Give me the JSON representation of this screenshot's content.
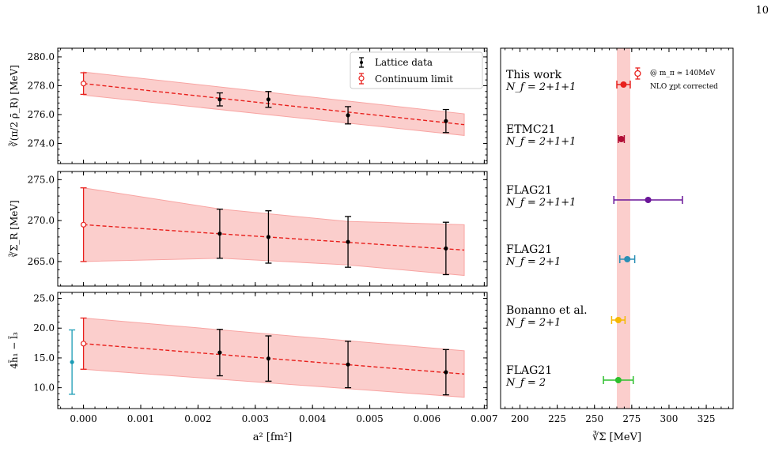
{
  "page_number": "10",
  "chart_data": [
    {
      "type": "scatter",
      "panel": "top",
      "ylabel": "∛(π/2 ρ̄_R)  [MeV]",
      "ylim": [
        272.6,
        280.6
      ],
      "yticks": [
        "280.0",
        "278.0",
        "276.0",
        "274.0"
      ],
      "ytick_values": [
        280.0,
        278.0,
        276.0,
        274.0
      ],
      "xlim": [
        -0.00045,
        0.00705
      ],
      "legend": [
        "Lattice data",
        "Continuum limit"
      ],
      "legend_position": "top-right",
      "lattice_points": [
        {
          "x": 0.00238,
          "y": 277.05,
          "err": 0.45
        },
        {
          "x": 0.00323,
          "y": 277.05,
          "err": 0.55
        },
        {
          "x": 0.00462,
          "y": 275.95,
          "err": 0.6
        },
        {
          "x": 0.00633,
          "y": 275.55,
          "err": 0.8
        }
      ],
      "continuum_point": {
        "x": 0.0,
        "y": 278.15,
        "err": 0.75
      },
      "fit_line": {
        "x": [
          0.0,
          0.00665
        ],
        "y": [
          278.15,
          275.3
        ]
      },
      "band_upper": [
        [
          0.0,
          278.95
        ],
        [
          0.00665,
          276.05
        ]
      ],
      "band_lower": [
        [
          0.0,
          277.35
        ],
        [
          0.00665,
          274.55
        ]
      ]
    },
    {
      "type": "scatter",
      "panel": "middle",
      "ylabel": "∛Σ_R  [MeV]",
      "ylim": [
        262.0,
        276.0
      ],
      "yticks": [
        "275.0",
        "270.0",
        "265.0"
      ],
      "ytick_values": [
        275.0,
        270.0,
        265.0
      ],
      "xlim": [
        -0.00045,
        0.00705
      ],
      "lattice_points": [
        {
          "x": 0.00238,
          "y": 268.4,
          "err": 3.0
        },
        {
          "x": 0.00323,
          "y": 268.0,
          "err": 3.2
        },
        {
          "x": 0.00462,
          "y": 267.4,
          "err": 3.1
        },
        {
          "x": 0.00633,
          "y": 266.6,
          "err": 3.2
        }
      ],
      "continuum_point": {
        "x": 0.0,
        "y": 269.5,
        "err": 4.5
      },
      "fit_line": {
        "x": [
          0.0,
          0.00665
        ],
        "y": [
          269.5,
          266.4
        ]
      },
      "band_upper": [
        [
          0.0,
          274.0
        ],
        [
          0.0024,
          271.4
        ],
        [
          0.0046,
          269.9
        ],
        [
          0.00665,
          269.5
        ]
      ],
      "band_lower": [
        [
          0.0,
          265.0
        ],
        [
          0.0024,
          265.4
        ],
        [
          0.0046,
          264.6
        ],
        [
          0.00665,
          263.3
        ]
      ]
    },
    {
      "type": "scatter",
      "panel": "bottom",
      "ylabel": "4h̄₁ − l̄₃",
      "xlabel": "a² [fm²]",
      "ylim": [
        6.5,
        26.0
      ],
      "yticks": [
        "25.0",
        "20.0",
        "15.0",
        "10.0"
      ],
      "ytick_values": [
        25.0,
        20.0,
        15.0,
        10.0
      ],
      "xlim": [
        -0.00045,
        0.00705
      ],
      "xticks": [
        "0.000",
        "0.001",
        "0.002",
        "0.003",
        "0.004",
        "0.005",
        "0.006",
        "0.007"
      ],
      "xtick_values": [
        0.0,
        0.001,
        0.002,
        0.003,
        0.004,
        0.005,
        0.006,
        0.007
      ],
      "lattice_points": [
        {
          "x": 0.00238,
          "y": 15.9,
          "err": 3.9
        },
        {
          "x": 0.00323,
          "y": 14.9,
          "err": 3.8
        },
        {
          "x": 0.00462,
          "y": 13.9,
          "err": 3.9
        },
        {
          "x": 0.00633,
          "y": 12.6,
          "err": 3.8
        }
      ],
      "continuum_point": {
        "x": 0.0,
        "y": 17.4,
        "err": 4.3
      },
      "reference_point": {
        "x": -0.0002,
        "y": 14.3,
        "err": 5.4,
        "color": "#1a9bb5"
      },
      "fit_line": {
        "x": [
          0.0,
          0.00665
        ],
        "y": [
          17.4,
          12.3
        ]
      },
      "band_upper": [
        [
          0.0,
          21.7
        ],
        [
          0.00665,
          16.2
        ]
      ],
      "band_lower": [
        [
          0.0,
          13.1
        ],
        [
          0.00665,
          8.4
        ]
      ]
    },
    {
      "type": "scatter",
      "panel": "right",
      "xlabel": "∛Σ  [MeV]",
      "xlim": [
        187,
        343
      ],
      "xticks": [
        "200",
        "225",
        "250",
        "275",
        "300",
        "325"
      ],
      "xtick_values": [
        200,
        225,
        250,
        275,
        300,
        325
      ],
      "band": {
        "center": 269.5,
        "lo": 265.0,
        "hi": 274.0
      },
      "annotation": {
        "line1": "@ m_π ≃ 140MeV",
        "line2": "NLO χpt corrected"
      },
      "entries": [
        {
          "name": "This work",
          "nf": "N_f = 2+1+1",
          "value": 269.5,
          "lo": 265.0,
          "hi": 274.0,
          "color": "#e8201c",
          "open_value": 279.0
        },
        {
          "name": "ETMC21",
          "nf": "N_f = 2+1+1",
          "value": 268.0,
          "lo": 266.0,
          "hi": 270.0,
          "color": "#b00d35"
        },
        {
          "name": "FLAG21",
          "nf": "N_f = 2+1+1",
          "value": 286.0,
          "lo": 263.0,
          "hi": 309.0,
          "color": "#6a1599"
        },
        {
          "name": "FLAG21",
          "nf": "N_f = 2+1",
          "value": 272.0,
          "lo": 267.0,
          "hi": 277.0,
          "color": "#2a8fb5"
        },
        {
          "name": "Bonanno et al.",
          "nf": "N_f = 2+1",
          "value": 266.0,
          "lo": 261.5,
          "hi": 270.5,
          "color": "#f5b800"
        },
        {
          "name": "FLAG21",
          "nf": "N_f = 2",
          "value": 266.0,
          "lo": 256.0,
          "hi": 276.0,
          "color": "#2cbf2c"
        }
      ]
    }
  ]
}
